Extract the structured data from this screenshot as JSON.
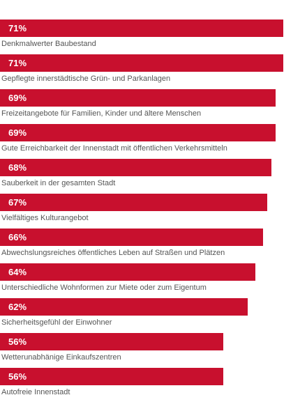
{
  "chart_data": {
    "type": "bar",
    "orientation": "horizontal",
    "value_suffix": "%",
    "bar_color": "#c8102e",
    "label_color": "#555555",
    "categories": [
      "Denkmalwerter Baubestand",
      "Gepflegte innerstädtische Grün- und Parkanlagen",
      "Freizeitangebote für Familien, Kinder und ältere Menschen",
      "Gute Erreichbarkeit der Innenstadt mit öffentlichen Verkehrsmitteln",
      "Sauberkeit in der gesamten Stadt",
      "Vielfältiges Kulturangebot",
      "Abwechslungsreiches öffentliches Leben auf Straßen und Plätzen",
      "Unterschiedliche Wohnformen zur Miete oder zum Eigentum",
      "Sicherheitsgefühl der Einwohner",
      "Wetterunabhänige Einkaufszentren",
      "Autofreie Innenstadt"
    ],
    "values": [
      71,
      71,
      69,
      69,
      68,
      67,
      66,
      64,
      62,
      56,
      56
    ],
    "value_labels": [
      "71%",
      "71%",
      "69%",
      "69%",
      "68%",
      "67%",
      "66%",
      "64%",
      "62%",
      "56%",
      "56%"
    ],
    "xlim": [
      0,
      71
    ]
  }
}
